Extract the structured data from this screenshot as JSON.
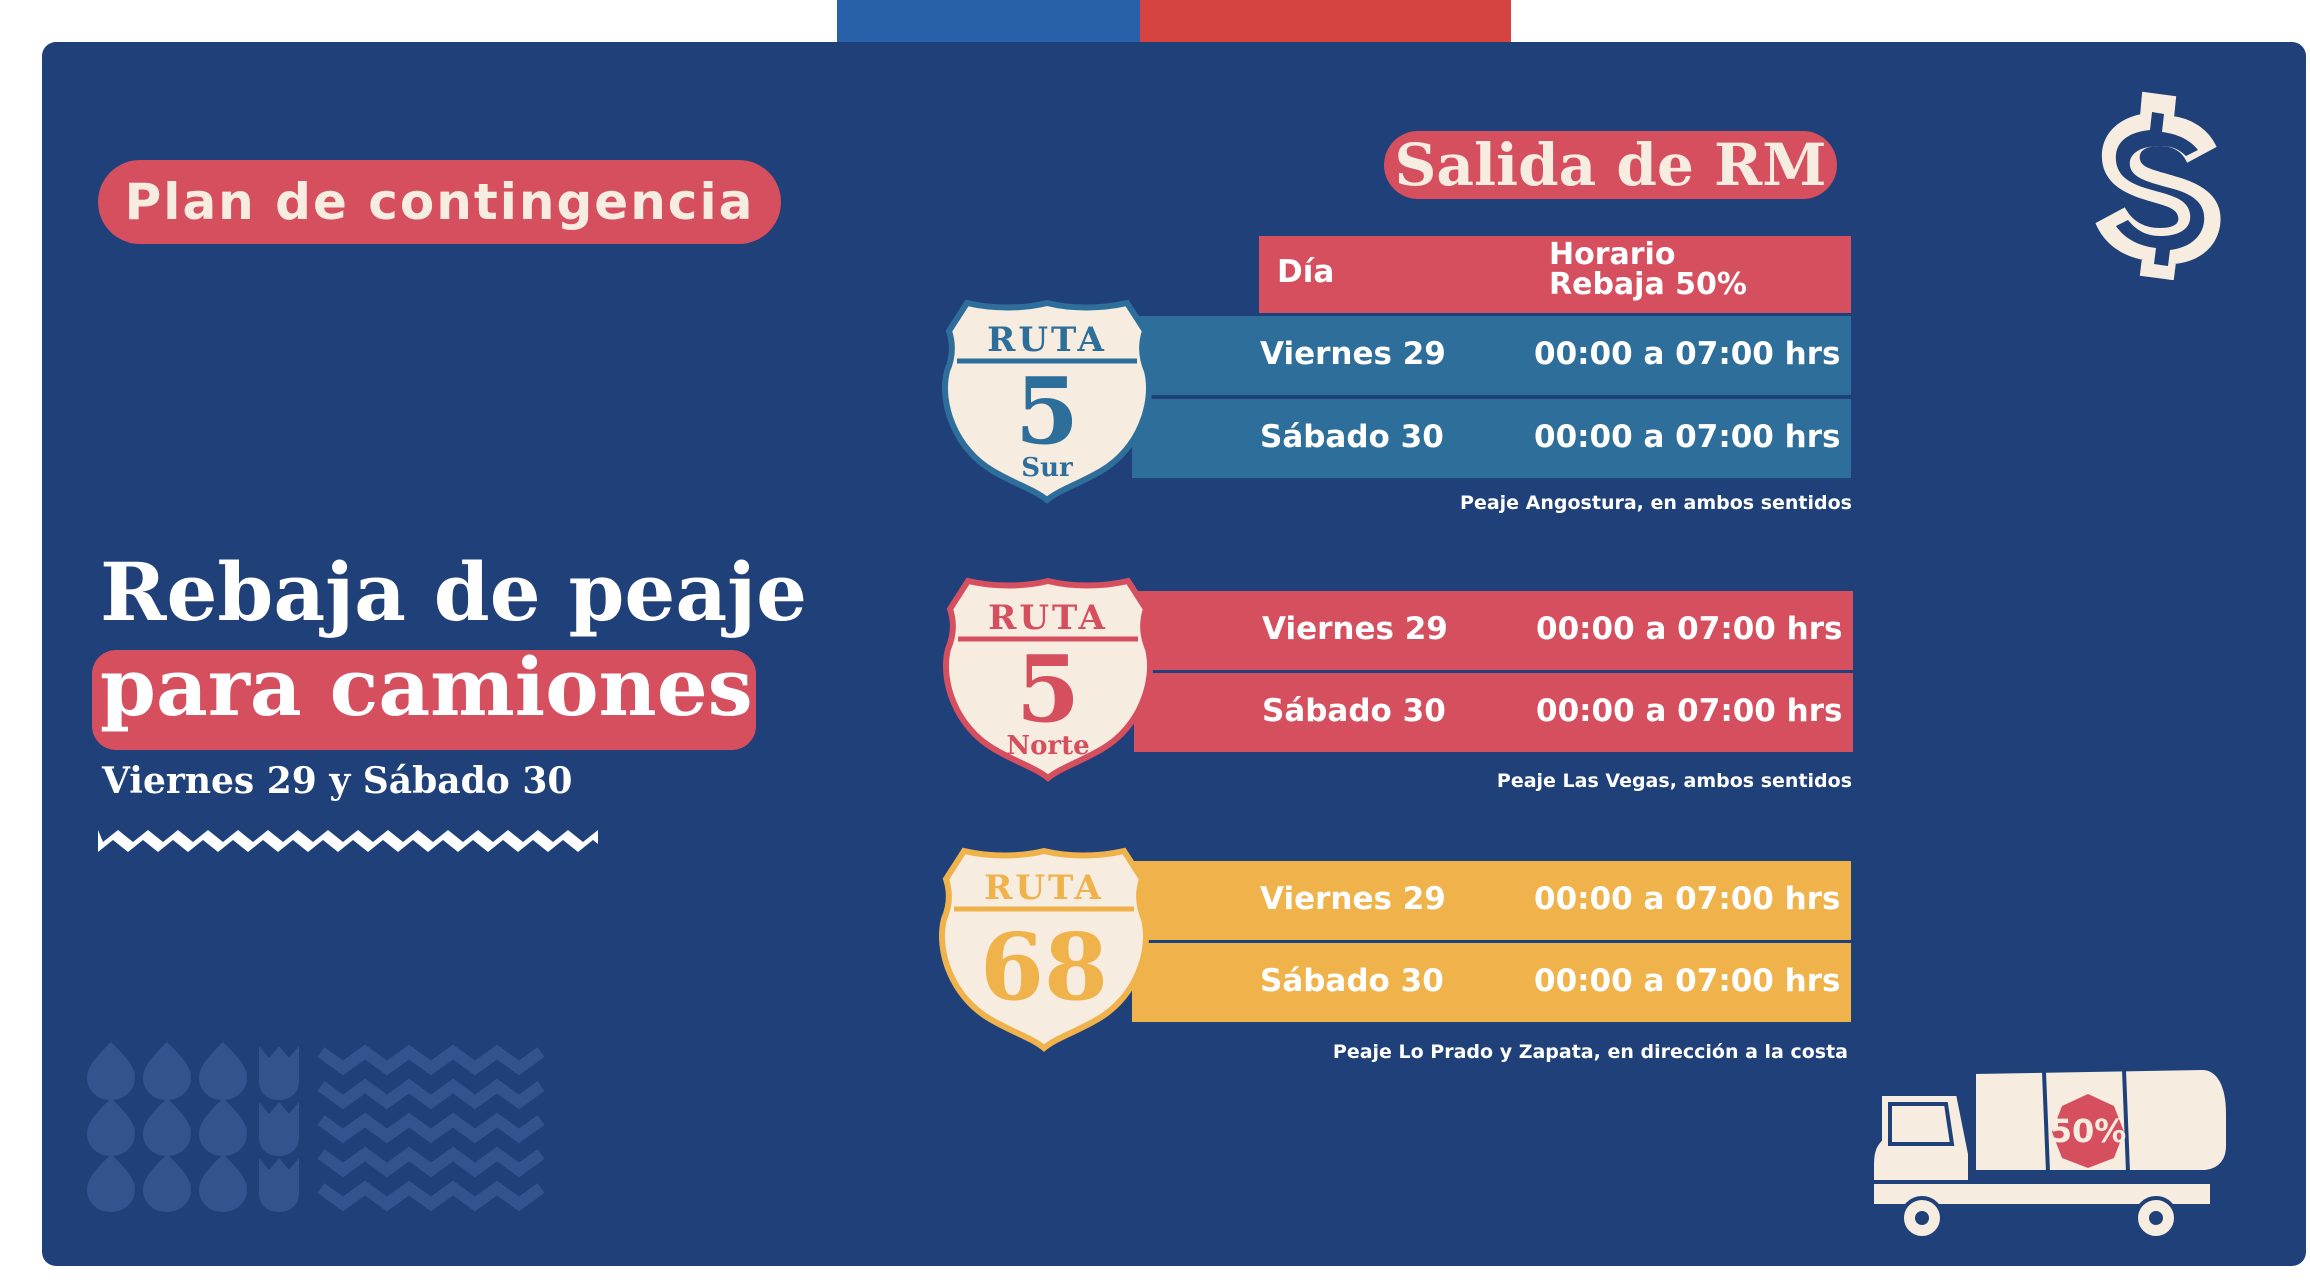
{
  "header_flag": {
    "blue": "#2860aa",
    "red": "#d64442"
  },
  "colors": {
    "panel": "#1f4079",
    "red": "#d64f5f",
    "blue_row": "#2e6e9a",
    "yellow_row": "#f0b24a",
    "cream": "#f6ece0"
  },
  "badge": "Plan de contingencia",
  "title_line1": "Rebaja de peaje",
  "title_line2": "para camiones",
  "subtitle": "Viernes 29 y Sábado 30",
  "table_title": "Salida de RM",
  "table_header": {
    "day": "Día",
    "hours_line1": "Horario",
    "hours_line2": "Rebaja 50%"
  },
  "routes": [
    {
      "shield_top": "RUTA",
      "shield_number": "5",
      "shield_bottom": "Sur",
      "rows": [
        {
          "day": "Viernes 29",
          "hours": "00:00 a 07:00 hrs"
        },
        {
          "day": "Sábado 30",
          "hours": "00:00 a 07:00 hrs"
        }
      ],
      "note": "Peaje Angostura, en ambos sentidos"
    },
    {
      "shield_top": "RUTA",
      "shield_number": "5",
      "shield_bottom": "Norte",
      "rows": [
        {
          "day": "Viernes 29",
          "hours": "00:00 a 07:00 hrs"
        },
        {
          "day": "Sábado 30",
          "hours": "00:00 a 07:00 hrs"
        }
      ],
      "note": "Peaje Las Vegas, ambos sentidos"
    },
    {
      "shield_top": "RUTA",
      "shield_number": "68",
      "shield_bottom": "",
      "rows": [
        {
          "day": "Viernes 29",
          "hours": "00:00 a 07:00 hrs"
        },
        {
          "day": "Sábado 30",
          "hours": "00:00 a 07:00 hrs"
        }
      ],
      "note": "Peaje Lo Prado y Zapata, en dirección a la costa"
    }
  ],
  "truck_badge": "50%",
  "icons": [
    "dollar-sign-icon",
    "truck-icon",
    "route-shield-icon",
    "zigzag-divider",
    "pattern-decoration"
  ]
}
